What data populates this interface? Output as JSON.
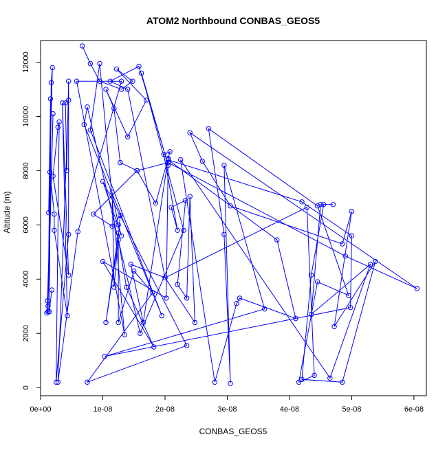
{
  "chart_data": {
    "type": "line",
    "title": "ATOM2 Northbound CONBAS_GEOS5",
    "xlabel": "CONBAS_GEOS5",
    "ylabel": "Altitude (m)",
    "xlim": [
      0,
      6.2e-08
    ],
    "ylim": [
      -300,
      12800
    ],
    "x_ticks": [
      {
        "value": 0,
        "label": "0e+00"
      },
      {
        "value": 1e-08,
        "label": "1e-08"
      },
      {
        "value": 2e-08,
        "label": "2e-08"
      },
      {
        "value": 3e-08,
        "label": "3e-08"
      },
      {
        "value": 4e-08,
        "label": "4e-08"
      },
      {
        "value": 5e-08,
        "label": "5e-08"
      },
      {
        "value": 6e-08,
        "label": "6e-08"
      }
    ],
    "y_ticks": [
      {
        "value": 0,
        "label": "0"
      },
      {
        "value": 2000,
        "label": "2000"
      },
      {
        "value": 4000,
        "label": "4000"
      },
      {
        "value": 6000,
        "label": "6000"
      },
      {
        "value": 8000,
        "label": "8000"
      },
      {
        "value": 10000,
        "label": "10000"
      },
      {
        "value": 12000,
        "label": "12000"
      }
    ],
    "grid": false,
    "legend": "none",
    "series": [
      {
        "color": "#0000ff",
        "marker": "open-circle",
        "points": [
          [
            6.7e-09,
            12600
          ],
          [
            8e-09,
            11950
          ],
          [
            9.5e-09,
            11300
          ],
          [
            1.3e-08,
            11000
          ],
          [
            1.48e-08,
            11300
          ],
          [
            1.22e-08,
            11750
          ],
          [
            1.7e-08,
            10600
          ],
          [
            1.4e-08,
            9250
          ],
          [
            1.05e-08,
            11000
          ],
          [
            1.18e-08,
            10300
          ],
          [
            1.28e-08,
            8300
          ],
          [
            1.55e-08,
            8000
          ],
          [
            1.85e-08,
            6800
          ],
          [
            2.05e-08,
            8450
          ],
          [
            2.08e-08,
            8700
          ],
          [
            1.98e-08,
            8600
          ],
          [
            2.2e-08,
            5800
          ],
          [
            2.1e-08,
            6650
          ],
          [
            2.33e-08,
            6900
          ],
          [
            2.2e-08,
            3800
          ],
          [
            2.35e-08,
            3300
          ],
          [
            2.4e-08,
            7050
          ],
          [
            2.48e-08,
            2400
          ],
          [
            2e-08,
            4050
          ],
          [
            1.45e-08,
            4550
          ],
          [
            1.65e-08,
            2400
          ],
          [
            2.05e-08,
            8450
          ],
          [
            2.02e-08,
            3300
          ],
          [
            1e-08,
            4650
          ],
          [
            1.82e-08,
            1500
          ],
          [
            1.38e-08,
            3700
          ],
          [
            1.25e-08,
            5450
          ],
          [
            1.05e-08,
            2400
          ],
          [
            1.25e-08,
            5700
          ],
          [
            1.25e-08,
            2400
          ],
          [
            1.5e-08,
            4300
          ],
          [
            1.8e-08,
            3500
          ],
          [
            7.5e-09,
            200
          ],
          [
            2.35e-08,
            1550
          ],
          [
            1e-08,
            7600
          ],
          [
            1.3e-08,
            5600
          ],
          [
            1.25e-08,
            6000
          ],
          [
            1.15e-08,
            7200
          ],
          [
            1.18e-08,
            3700
          ],
          [
            1.28e-08,
            6350
          ],
          [
            1.15e-08,
            5950
          ],
          [
            8.5e-09,
            6400
          ],
          [
            1.55e-08,
            8000
          ],
          [
            2.05e-08,
            8300
          ],
          [
            4.9e-08,
            4850
          ],
          [
            6.05e-08,
            3650
          ],
          [
            2.4e-08,
            9400
          ],
          [
            2.6e-08,
            8350
          ],
          [
            3.05e-08,
            6700
          ],
          [
            4.85e-08,
            5300
          ],
          [
            5e-08,
            6500
          ],
          [
            4.72e-08,
            2250
          ],
          [
            5.38e-08,
            4650
          ],
          [
            4.85e-08,
            200
          ],
          [
            4.2e-08,
            300
          ],
          [
            4.35e-08,
            4150
          ],
          [
            4.55e-08,
            6750
          ],
          [
            4.7e-08,
            6750
          ],
          [
            4.5e-08,
            6750
          ],
          [
            4.35e-08,
            2700
          ],
          [
            5.3e-08,
            4550
          ],
          [
            4.65e-08,
            350
          ],
          [
            2.25e-08,
            8400
          ],
          [
            2.8e-08,
            200
          ],
          [
            3.15e-08,
            3100
          ],
          [
            3.2e-08,
            3300
          ],
          [
            4.1e-08,
            2550
          ],
          [
            3.8e-08,
            5450
          ],
          [
            2.05e-08,
            8400
          ],
          [
            4.2e-08,
            6850
          ],
          [
            5e-08,
            5600
          ],
          [
            4.98e-08,
            2950
          ],
          [
            1.03e-08,
            1150
          ],
          [
            3.6e-08,
            2900
          ],
          [
            2.95e-08,
            8200
          ],
          [
            3.05e-08,
            150
          ],
          [
            2.95e-08,
            5650
          ],
          [
            2.7e-08,
            9550
          ],
          [
            4.45e-08,
            6700
          ],
          [
            4.95e-08,
            3400
          ],
          [
            4.45e-08,
            3900
          ],
          [
            4.15e-08,
            200
          ],
          [
            4.4e-08,
            450
          ],
          [
            4.28e-08,
            6650
          ],
          [
            2e-08,
            4050
          ],
          [
            1.4e-08,
            11000
          ],
          [
            1.12e-08,
            11300
          ],
          [
            1.58e-08,
            11850
          ],
          [
            2.05e-08,
            8200
          ],
          [
            1.62e-08,
            11600
          ],
          [
            2.3e-08,
            5800
          ],
          [
            1.6e-08,
            2000
          ],
          [
            7.5e-09,
            10350
          ],
          [
            7e-09,
            9700
          ],
          [
            1.95e-08,
            2650
          ],
          [
            8e-09,
            9500
          ],
          [
            9.5e-09,
            11950
          ],
          [
            1.35e-08,
            1950
          ],
          [
            5.8e-09,
            11300
          ],
          [
            1.3e-08,
            11300
          ],
          [
            6e-09,
            5750
          ],
          [
            2.8e-09,
            200
          ],
          [
            4.5e-09,
            10600
          ],
          [
            4e-09,
            10500
          ],
          [
            4.2e-09,
            8000
          ],
          [
            4.5e-09,
            11300
          ],
          [
            4.5e-09,
            5650
          ],
          [
            2.5e-09,
            200
          ],
          [
            3e-09,
            9800
          ],
          [
            2.8e-09,
            9600
          ],
          [
            2e-09,
            7800
          ],
          [
            4.5e-09,
            4150
          ],
          [
            3.5e-09,
            10500
          ],
          [
            4.3e-09,
            2650
          ],
          [
            2.2e-09,
            5800
          ],
          [
            2.2e-09,
            6400
          ],
          [
            1.5e-09,
            7950
          ],
          [
            1.2e-09,
            3000
          ],
          [
            2e-09,
            10100
          ],
          [
            1.1e-09,
            3200
          ],
          [
            1e-09,
            2750
          ],
          [
            1.2e-09,
            2800
          ],
          [
            1.6e-09,
            10650
          ],
          [
            1.3e-09,
            6450
          ],
          [
            1.9e-09,
            11800
          ],
          [
            1.7e-09,
            11250
          ],
          [
            1.4e-09,
            2800
          ],
          [
            1.8e-09,
            3600
          ]
        ]
      }
    ]
  }
}
